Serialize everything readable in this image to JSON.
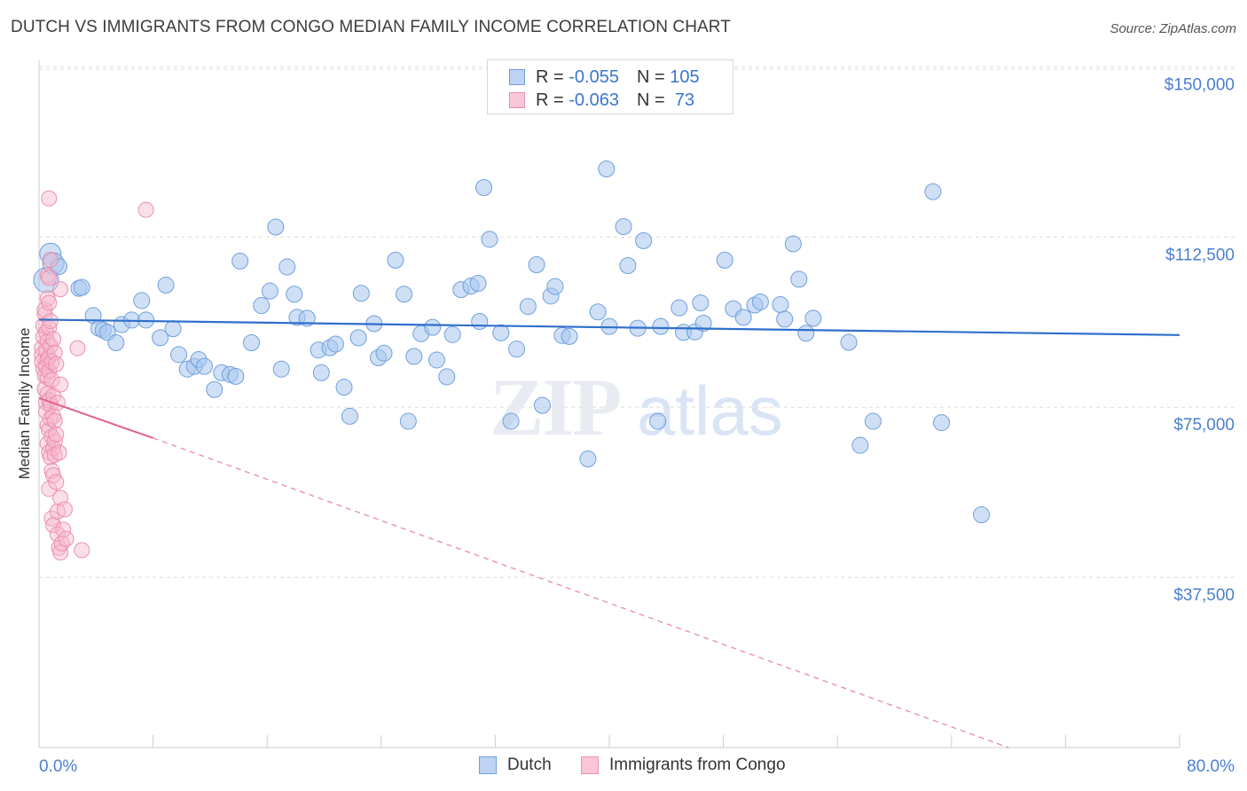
{
  "title": "DUTCH VS IMMIGRANTS FROM CONGO MEDIAN FAMILY INCOME CORRELATION CHART",
  "source": "Source: ZipAtlas.com",
  "watermark": {
    "zip": "ZIP",
    "atlas": "atlas"
  },
  "colors": {
    "dutch_fill": "#a8c6ee",
    "dutch_stroke": "#6f9fdc",
    "dutch_line": "#2f6fcc",
    "congo_fill": "#f7b8cc",
    "congo_stroke": "#ec8fae",
    "congo_line": "#e0628c",
    "tick_text": "#4a7fd0",
    "grid": "#dddddd"
  },
  "legend": {
    "dutch": {
      "r_label": "R = ",
      "r_value": "-0.055",
      "n_label": "N = ",
      "n_value": "105"
    },
    "congo": {
      "r_label": "R = ",
      "r_value": "-0.063",
      "n_label": "N = ",
      "n_value": " 73"
    }
  },
  "bottom_legend": {
    "dutch": "Dutch",
    "congo": "Immigrants from Congo"
  },
  "chart_data": {
    "type": "scatter",
    "title": "DUTCH VS IMMIGRANTS FROM CONGO MEDIAN FAMILY INCOME CORRELATION CHART",
    "xlabel": "",
    "ylabel": "Median Family Income",
    "xlim": [
      0,
      80
    ],
    "ylim": [
      0,
      157500
    ],
    "x_tick_labels": [
      "0.0%",
      "80.0%"
    ],
    "y_ticks": [
      37500,
      75000,
      112500,
      150000
    ],
    "y_tick_labels": [
      "$37,500",
      "$75,000",
      "$112,500",
      "$150,000"
    ],
    "grid": true,
    "series": [
      {
        "name": "Dutch",
        "r": -0.055,
        "n": 105,
        "trend": {
          "x": [
            0,
            80
          ],
          "y": [
            94300,
            90900
          ]
        },
        "points": [
          [
            0.5,
            103000
          ],
          [
            0.8,
            108800
          ],
          [
            1.0,
            106700
          ],
          [
            1.4,
            106000
          ],
          [
            2.8,
            101200
          ],
          [
            3.0,
            101400
          ],
          [
            3.8,
            95200
          ],
          [
            4.2,
            92400
          ],
          [
            4.5,
            92000
          ],
          [
            4.8,
            91500
          ],
          [
            5.4,
            89200
          ],
          [
            5.8,
            93200
          ],
          [
            6.5,
            94200
          ],
          [
            7.2,
            98500
          ],
          [
            7.5,
            94200
          ],
          [
            8.5,
            90300
          ],
          [
            8.9,
            101900
          ],
          [
            9.4,
            92300
          ],
          [
            9.8,
            86600
          ],
          [
            10.4,
            83400
          ],
          [
            10.9,
            84000
          ],
          [
            11.2,
            85500
          ],
          [
            11.6,
            84000
          ],
          [
            12.3,
            78900
          ],
          [
            12.8,
            82600
          ],
          [
            13.4,
            82200
          ],
          [
            13.8,
            81800
          ],
          [
            14.1,
            107200
          ],
          [
            14.9,
            89200
          ],
          [
            15.6,
            97400
          ],
          [
            16.2,
            100600
          ],
          [
            16.6,
            114700
          ],
          [
            17.0,
            83400
          ],
          [
            17.4,
            105900
          ],
          [
            17.9,
            99900
          ],
          [
            18.1,
            94800
          ],
          [
            18.8,
            94600
          ],
          [
            19.6,
            87600
          ],
          [
            19.8,
            82600
          ],
          [
            20.4,
            88100
          ],
          [
            20.8,
            88900
          ],
          [
            21.4,
            79400
          ],
          [
            21.8,
            73000
          ],
          [
            22.4,
            90300
          ],
          [
            22.6,
            100100
          ],
          [
            23.5,
            93400
          ],
          [
            23.8,
            85900
          ],
          [
            24.2,
            86900
          ],
          [
            25.0,
            107400
          ],
          [
            25.6,
            99900
          ],
          [
            25.9,
            71900
          ],
          [
            26.3,
            86200
          ],
          [
            26.8,
            91200
          ],
          [
            27.6,
            92600
          ],
          [
            27.9,
            85400
          ],
          [
            28.6,
            81700
          ],
          [
            29.0,
            91000
          ],
          [
            29.6,
            100900
          ],
          [
            30.3,
            101700
          ],
          [
            30.8,
            102300
          ],
          [
            30.9,
            93900
          ],
          [
            31.2,
            123400
          ],
          [
            31.6,
            112000
          ],
          [
            32.4,
            91400
          ],
          [
            33.1,
            71900
          ],
          [
            33.5,
            87800
          ],
          [
            34.3,
            97200
          ],
          [
            34.9,
            106400
          ],
          [
            35.3,
            75400
          ],
          [
            35.9,
            99500
          ],
          [
            36.2,
            101600
          ],
          [
            36.7,
            90800
          ],
          [
            37.2,
            90600
          ],
          [
            38.5,
            63600
          ],
          [
            39.2,
            96000
          ],
          [
            39.8,
            127500
          ],
          [
            40.0,
            92800
          ],
          [
            41.0,
            114800
          ],
          [
            41.3,
            106200
          ],
          [
            42.0,
            92400
          ],
          [
            42.4,
            111700
          ],
          [
            43.4,
            71900
          ],
          [
            43.6,
            92800
          ],
          [
            44.9,
            96900
          ],
          [
            45.2,
            91500
          ],
          [
            46.0,
            91600
          ],
          [
            46.4,
            98000
          ],
          [
            46.6,
            93500
          ],
          [
            48.1,
            107400
          ],
          [
            48.7,
            96700
          ],
          [
            49.4,
            94800
          ],
          [
            50.2,
            97500
          ],
          [
            50.6,
            98200
          ],
          [
            52.0,
            97600
          ],
          [
            52.3,
            94400
          ],
          [
            52.9,
            111000
          ],
          [
            53.3,
            103200
          ],
          [
            53.8,
            91300
          ],
          [
            54.3,
            94600
          ],
          [
            56.8,
            89300
          ],
          [
            57.6,
            66600
          ],
          [
            58.5,
            71900
          ],
          [
            62.7,
            122500
          ],
          [
            63.3,
            71600
          ],
          [
            66.1,
            51300
          ]
        ]
      },
      {
        "name": "Immigrants from Congo",
        "r": -0.063,
        "n": 73,
        "trend_solid": {
          "x": [
            0,
            8
          ],
          "y": [
            77000,
            68200
          ]
        },
        "trend_dashed": {
          "x": [
            8,
            68
          ],
          "y": [
            68200,
            0
          ]
        },
        "points": [
          [
            0.2,
            88000
          ],
          [
            0.2,
            86500
          ],
          [
            0.2,
            85000
          ],
          [
            0.3,
            83500
          ],
          [
            0.3,
            90500
          ],
          [
            0.3,
            93000
          ],
          [
            0.4,
            82000
          ],
          [
            0.4,
            95500
          ],
          [
            0.4,
            79000
          ],
          [
            0.4,
            96500
          ],
          [
            0.5,
            76000
          ],
          [
            0.5,
            91500
          ],
          [
            0.5,
            87500
          ],
          [
            0.5,
            84000
          ],
          [
            0.5,
            74000
          ],
          [
            0.6,
            104000
          ],
          [
            0.6,
            99000
          ],
          [
            0.6,
            89500
          ],
          [
            0.6,
            85500
          ],
          [
            0.6,
            81500
          ],
          [
            0.6,
            78000
          ],
          [
            0.6,
            71000
          ],
          [
            0.6,
            67000
          ],
          [
            0.7,
            121000
          ],
          [
            0.7,
            103500
          ],
          [
            0.7,
            98000
          ],
          [
            0.7,
            92500
          ],
          [
            0.7,
            86000
          ],
          [
            0.7,
            83000
          ],
          [
            0.7,
            76500
          ],
          [
            0.7,
            70000
          ],
          [
            0.7,
            65000
          ],
          [
            0.7,
            57000
          ],
          [
            0.8,
            107500
          ],
          [
            0.8,
            94000
          ],
          [
            0.8,
            88500
          ],
          [
            0.8,
            75500
          ],
          [
            0.8,
            72500
          ],
          [
            0.8,
            64000
          ],
          [
            0.9,
            85000
          ],
          [
            0.9,
            81000
          ],
          [
            0.9,
            68500
          ],
          [
            0.9,
            61000
          ],
          [
            0.9,
            50500
          ],
          [
            1.0,
            90000
          ],
          [
            1.0,
            77500
          ],
          [
            1.0,
            73000
          ],
          [
            1.0,
            66000
          ],
          [
            1.0,
            60000
          ],
          [
            1.0,
            49000
          ],
          [
            1.1,
            87000
          ],
          [
            1.1,
            72000
          ],
          [
            1.1,
            67500
          ],
          [
            1.1,
            64500
          ],
          [
            1.2,
            84500
          ],
          [
            1.2,
            69000
          ],
          [
            1.2,
            58500
          ],
          [
            1.3,
            76000
          ],
          [
            1.3,
            52000
          ],
          [
            1.3,
            47000
          ],
          [
            1.4,
            65000
          ],
          [
            1.4,
            44000
          ],
          [
            1.5,
            101000
          ],
          [
            1.5,
            80000
          ],
          [
            1.5,
            55000
          ],
          [
            1.5,
            43000
          ],
          [
            1.6,
            45000
          ],
          [
            1.7,
            48000
          ],
          [
            1.8,
            52500
          ],
          [
            1.9,
            46000
          ],
          [
            2.7,
            88000
          ],
          [
            3.0,
            43500
          ],
          [
            7.5,
            118500
          ]
        ]
      }
    ]
  }
}
